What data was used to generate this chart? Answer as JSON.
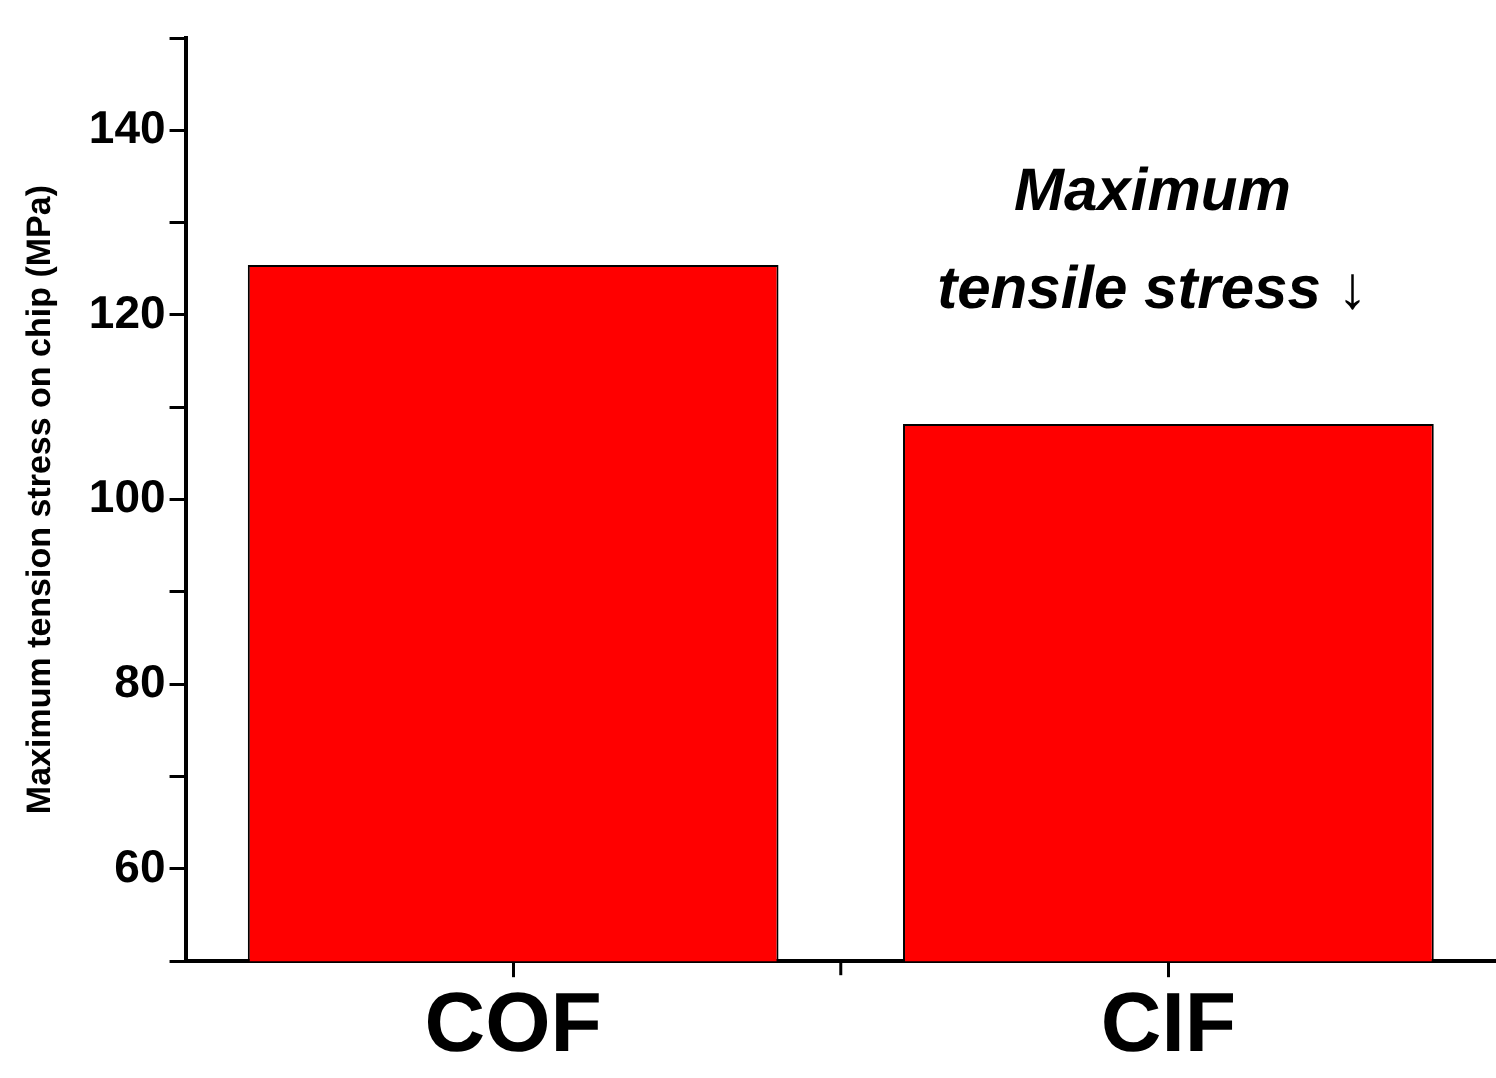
{
  "chart_data": {
    "type": "bar",
    "ylabel": "Maximum tension stress on chip (MPa)",
    "categories": [
      "COF",
      "CIF"
    ],
    "values": [
      125.4,
      108.2
    ],
    "color": "#ff0000",
    "ylim": [
      50,
      150
    ],
    "yticks": [
      {
        "value": 50,
        "label": null
      },
      60,
      {
        "value": 70,
        "label": null
      },
      80,
      {
        "value": 90,
        "label": null
      },
      100,
      {
        "value": 110,
        "label": null
      },
      120,
      {
        "value": 130,
        "label": null
      },
      140,
      {
        "value": 150,
        "label": null
      }
    ],
    "grid": false,
    "legend": false,
    "annotations": [
      "Maximum\ntensile stress ↓"
    ]
  }
}
